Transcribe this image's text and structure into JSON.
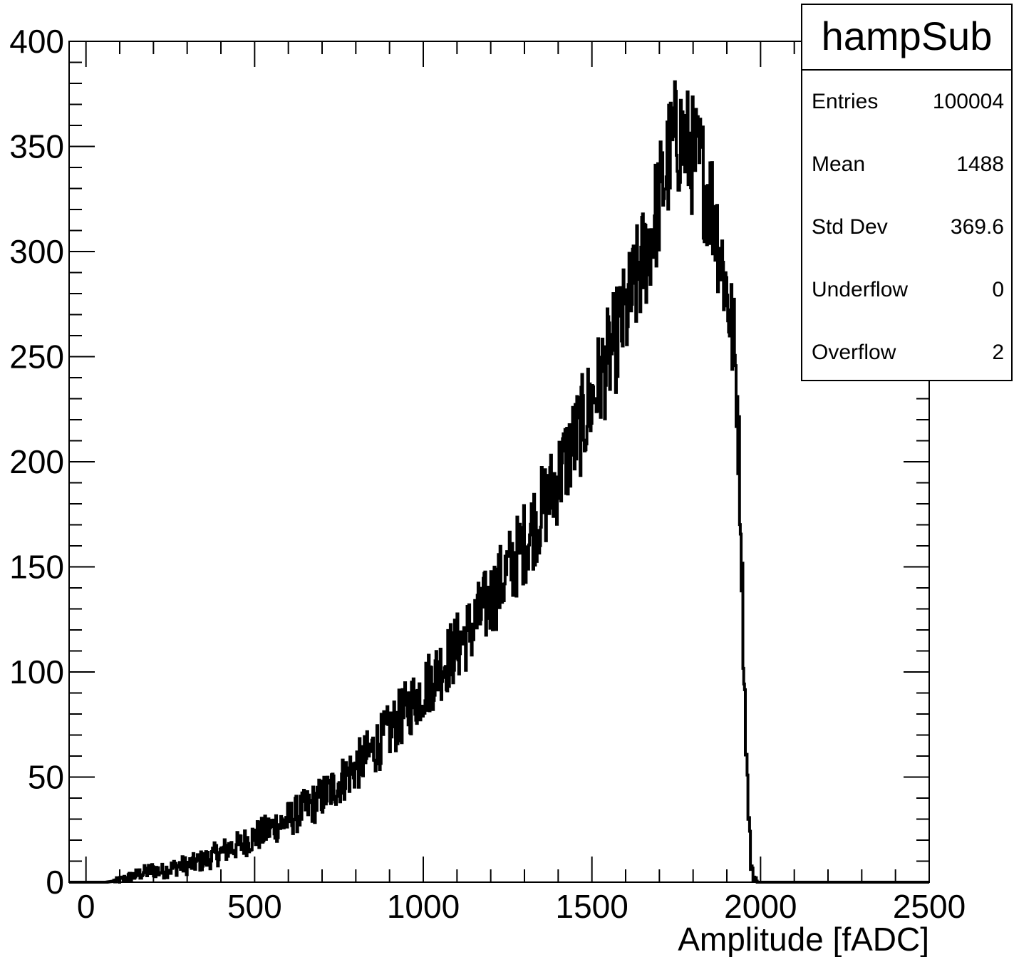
{
  "chart_data": {
    "type": "histogram",
    "xlabel": "Amplitude [fADC]",
    "ylabel": "",
    "xlim": [
      -50,
      2500
    ],
    "ylim": [
      0,
      400
    ],
    "x_ticks": [
      0,
      500,
      1000,
      1500,
      2000,
      2500
    ],
    "y_ticks": [
      0,
      50,
      100,
      150,
      200,
      250,
      300,
      350,
      400
    ],
    "grid": false,
    "line_color": "#000000",
    "series": [
      {
        "x": [
          60,
          80,
          100,
          120,
          140,
          160,
          180,
          200,
          220,
          240,
          260,
          280,
          300,
          320,
          340,
          360,
          380,
          400,
          420,
          440,
          460,
          480,
          500,
          520,
          540,
          560,
          580,
          600,
          620,
          640,
          660,
          680,
          700,
          720,
          740,
          760,
          780,
          800,
          820,
          840,
          860,
          880,
          900,
          920,
          940,
          960,
          980,
          1000,
          1020,
          1040,
          1060,
          1080,
          1100,
          1120,
          1140,
          1160,
          1180,
          1200,
          1220,
          1240,
          1260,
          1280,
          1300,
          1320,
          1340,
          1360,
          1380,
          1400,
          1420,
          1440,
          1460,
          1480,
          1500,
          1520,
          1540,
          1560,
          1580,
          1600,
          1620,
          1640,
          1660,
          1680,
          1700,
          1720,
          1740,
          1760,
          1780,
          1800,
          1820,
          1840,
          1860,
          1880,
          1900,
          1920,
          1930,
          1940,
          1950,
          1960,
          1970,
          1980,
          1990,
          2000,
          2200,
          2400,
          2500
        ],
        "values": [
          0,
          0.5,
          1,
          2,
          3,
          4,
          5,
          6,
          5,
          6,
          7,
          8,
          8,
          9,
          10,
          11,
          13,
          14,
          16,
          17,
          18,
          20,
          22,
          23,
          25,
          27,
          28,
          30,
          32,
          34,
          36,
          38,
          41,
          43,
          46,
          49,
          52,
          55,
          58,
          61,
          65,
          68,
          72,
          76,
          80,
          84,
          88,
          92,
          96,
          100,
          104,
          108,
          112,
          116,
          120,
          125,
          130,
          135,
          140,
          146,
          151,
          156,
          162,
          168,
          174,
          180,
          186,
          193,
          200,
          207,
          214,
          222,
          230,
          238,
          246,
          254,
          262,
          270,
          280,
          290,
          300,
          312,
          325,
          340,
          352,
          355,
          350,
          345,
          340,
          330,
          320,
          300,
          280,
          255,
          230,
          175,
          100,
          45,
          10,
          2,
          0,
          0,
          0,
          0,
          0
        ]
      }
    ]
  },
  "stats": {
    "title": "hampSub",
    "rows": [
      {
        "key": "Entries",
        "value": "100004"
      },
      {
        "key": "Mean",
        "value": "1488"
      },
      {
        "key": "Std Dev",
        "value": "369.6"
      },
      {
        "key": "Underflow",
        "value": "0"
      },
      {
        "key": "Overflow",
        "value": "2"
      }
    ]
  }
}
